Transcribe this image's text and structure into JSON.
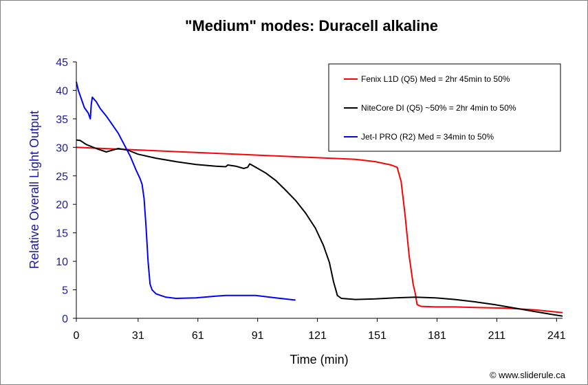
{
  "chart_data": {
    "type": "line",
    "title": "\"Medium\" modes: Duracell alkaline",
    "xlabel": "Time (min)",
    "ylabel": "Relative Overall Light Output",
    "xlim": [
      0,
      244
    ],
    "ylim": [
      0,
      45
    ],
    "x_ticks": [
      0,
      31,
      61,
      91,
      121,
      151,
      181,
      211,
      241
    ],
    "y_ticks": [
      0,
      5,
      10,
      15,
      20,
      25,
      30,
      35,
      40,
      45
    ],
    "grid": false,
    "legend_position": "top-right",
    "series": [
      {
        "name": "Fenix L1D (Q5) Med = 2hr 45min to 50%",
        "color": "#ff0000",
        "points": [
          [
            0,
            30.0
          ],
          [
            20,
            29.7
          ],
          [
            40,
            29.4
          ],
          [
            60,
            29.1
          ],
          [
            80,
            28.8
          ],
          [
            100,
            28.5
          ],
          [
            120,
            28.2
          ],
          [
            140,
            27.9
          ],
          [
            150,
            27.5
          ],
          [
            158,
            26.9
          ],
          [
            161,
            26.5
          ],
          [
            163,
            24.0
          ],
          [
            165,
            18.0
          ],
          [
            167,
            11.0
          ],
          [
            169,
            6.0
          ],
          [
            170,
            4.5
          ],
          [
            171,
            2.4
          ],
          [
            173,
            2.1
          ],
          [
            180,
            2.0
          ],
          [
            190,
            2.0
          ],
          [
            200,
            1.9
          ],
          [
            215,
            1.8
          ],
          [
            230,
            1.5
          ],
          [
            244,
            1.0
          ]
        ]
      },
      {
        "name": "NiteCore DI (Q5) ~50% = 2hr 4min to 50%",
        "color": "#000000",
        "points": [
          [
            0,
            31.3
          ],
          [
            2,
            31.2
          ],
          [
            5,
            30.5
          ],
          [
            10,
            29.8
          ],
          [
            15,
            29.2
          ],
          [
            18,
            29.5
          ],
          [
            21,
            29.8
          ],
          [
            26,
            29.5
          ],
          [
            31,
            28.8
          ],
          [
            40,
            28.1
          ],
          [
            50,
            27.5
          ],
          [
            60,
            27.0
          ],
          [
            70,
            26.7
          ],
          [
            75,
            26.6
          ],
          [
            76,
            26.9
          ],
          [
            80,
            26.7
          ],
          [
            84,
            26.3
          ],
          [
            86,
            26.5
          ],
          [
            87,
            27.1
          ],
          [
            90,
            26.5
          ],
          [
            95,
            25.5
          ],
          [
            100,
            24.2
          ],
          [
            105,
            22.5
          ],
          [
            110,
            20.7
          ],
          [
            115,
            18.5
          ],
          [
            120,
            15.8
          ],
          [
            124,
            12.8
          ],
          [
            127,
            9.8
          ],
          [
            129,
            6.5
          ],
          [
            131,
            4.0
          ],
          [
            133,
            3.5
          ],
          [
            140,
            3.3
          ],
          [
            150,
            3.4
          ],
          [
            160,
            3.6
          ],
          [
            170,
            3.7
          ],
          [
            180,
            3.6
          ],
          [
            190,
            3.3
          ],
          [
            200,
            2.9
          ],
          [
            210,
            2.4
          ],
          [
            220,
            1.8
          ],
          [
            230,
            1.2
          ],
          [
            240,
            0.6
          ],
          [
            244,
            0.4
          ]
        ]
      },
      {
        "name": "Jet-I PRO (R2) Med = 34min to 50%",
        "color": "#0000ff",
        "points": [
          [
            0,
            41.5
          ],
          [
            1,
            40.0
          ],
          [
            2,
            39.0
          ],
          [
            3,
            38.0
          ],
          [
            4,
            37.0
          ],
          [
            5,
            36.5
          ],
          [
            6,
            36.0
          ],
          [
            7,
            35.0
          ],
          [
            7.5,
            37.5
          ],
          [
            8,
            38.8
          ],
          [
            10,
            38.0
          ],
          [
            12,
            36.8
          ],
          [
            15,
            35.5
          ],
          [
            18,
            34.0
          ],
          [
            21,
            32.5
          ],
          [
            24,
            30.5
          ],
          [
            27,
            28.5
          ],
          [
            30,
            26.0
          ],
          [
            32,
            24.5
          ],
          [
            33,
            23.5
          ],
          [
            34,
            21.0
          ],
          [
            35,
            16.0
          ],
          [
            36,
            10.0
          ],
          [
            37,
            6.0
          ],
          [
            38,
            5.0
          ],
          [
            40,
            4.3
          ],
          [
            45,
            3.7
          ],
          [
            50,
            3.5
          ],
          [
            60,
            3.6
          ],
          [
            70,
            3.9
          ],
          [
            75,
            4.0
          ],
          [
            80,
            4.0
          ],
          [
            90,
            4.0
          ],
          [
            100,
            3.6
          ],
          [
            110,
            3.2
          ]
        ]
      }
    ]
  },
  "copyright": "© www.sliderule.ca",
  "colors": {
    "axis_title_color": "#1a1aa6",
    "legend_border": "#000000"
  }
}
